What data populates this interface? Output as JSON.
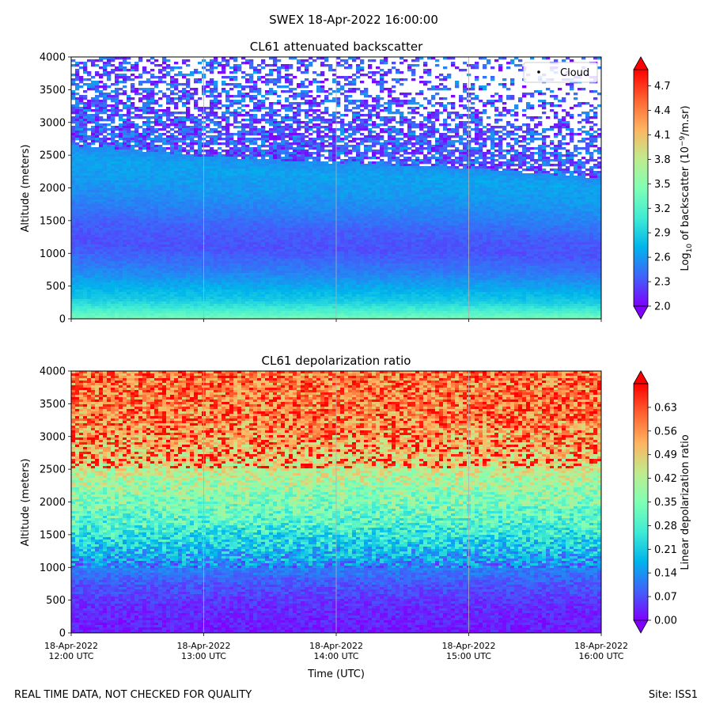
{
  "figure": {
    "suptitle": "SWEX 18-Apr-2022 16:00:00",
    "footer_left": "REAL TIME DATA, NOT CHECKED FOR QUALITY",
    "footer_right": "Site: ISS1"
  },
  "chart_data": [
    {
      "type": "heatmap",
      "title": "CL61 attenuated backscatter",
      "ylabel": "Altitude (meters)",
      "xlabel": "",
      "ylim": [
        0,
        4000
      ],
      "yticks": [
        0,
        500,
        1000,
        1500,
        2000,
        2500,
        3000,
        3500,
        4000
      ],
      "x_range_hours_utc": [
        12,
        16
      ],
      "xtick_labels": [
        "",
        "",
        "",
        "",
        ""
      ],
      "grid": "vertical lines at each x tick",
      "colorbar": {
        "label_prefix": "Log",
        "label_sub": "10",
        "label_mid": " of backscatter (10",
        "label_sup": "−9",
        "label_suffix": "/m.sr)",
        "range": [
          2.0,
          4.9
        ],
        "ticks": [
          "2.0",
          "2.3",
          "2.6",
          "2.9",
          "3.2",
          "3.5",
          "3.8",
          "4.1",
          "4.4",
          "4.7"
        ],
        "extend": "both",
        "colormap": "rainbow"
      },
      "legend": {
        "entries": [
          "Cloud"
        ],
        "placement": "upper right"
      },
      "profile": [
        {
          "altitude": 0,
          "value": 3.4
        },
        {
          "altitude": 150,
          "value": 3.1
        },
        {
          "altitude": 300,
          "value": 2.85
        },
        {
          "altitude": 600,
          "value": 2.6
        },
        {
          "altitude": 800,
          "value": 2.45
        },
        {
          "altitude": 1100,
          "value": 2.3
        },
        {
          "altitude": 1400,
          "value": 2.35
        },
        {
          "altitude": 1700,
          "value": 2.5
        },
        {
          "altitude": 2000,
          "value": 2.6
        },
        {
          "altitude": 2300,
          "value": 2.65
        },
        {
          "altitude": 2500,
          "value": 2.55
        },
        {
          "altitude": 2600,
          "value": 2.3
        },
        {
          "altitude": 3000,
          "value": 2.1
        },
        {
          "altitude": 4000,
          "value": 2.0
        }
      ],
      "top_of_signal_altitude": {
        "x_hours": [
          12,
          13,
          14,
          15,
          16
        ],
        "altitude": [
          2650,
          2480,
          2380,
          2300,
          2150
        ]
      }
    },
    {
      "type": "heatmap",
      "title": "CL61 depolarization ratio",
      "ylabel": "Altitude (meters)",
      "xlabel": "Time (UTC)",
      "ylim": [
        0,
        4000
      ],
      "yticks": [
        0,
        500,
        1000,
        1500,
        2000,
        2500,
        3000,
        3500,
        4000
      ],
      "x_range_hours_utc": [
        12,
        16
      ],
      "xtick_labels": [
        [
          "18-Apr-2022",
          "12:00 UTC"
        ],
        [
          "18-Apr-2022",
          "13:00 UTC"
        ],
        [
          "18-Apr-2022",
          "14:00 UTC"
        ],
        [
          "18-Apr-2022",
          "15:00 UTC"
        ],
        [
          "18-Apr-2022",
          "16:00 UTC"
        ]
      ],
      "grid": "vertical lines at each x tick",
      "colorbar": {
        "label": "Linear depolarization ratio",
        "range": [
          0.0,
          0.7
        ],
        "ticks": [
          "0.00",
          "0.07",
          "0.14",
          "0.21",
          "0.28",
          "0.35",
          "0.42",
          "0.49",
          "0.56",
          "0.63"
        ],
        "extend": "both",
        "colormap": "rainbow"
      },
      "profile": [
        {
          "altitude": 0,
          "value": 0.02
        },
        {
          "altitude": 400,
          "value": 0.04
        },
        {
          "altitude": 700,
          "value": 0.07
        },
        {
          "altitude": 1000,
          "value": 0.12
        },
        {
          "altitude": 1300,
          "value": 0.2
        },
        {
          "altitude": 1700,
          "value": 0.3
        },
        {
          "altitude": 2200,
          "value": 0.38
        },
        {
          "altitude": 2700,
          "value": 0.48
        },
        {
          "altitude": 3200,
          "value": 0.55
        },
        {
          "altitude": 4000,
          "value": 0.57
        }
      ]
    }
  ]
}
